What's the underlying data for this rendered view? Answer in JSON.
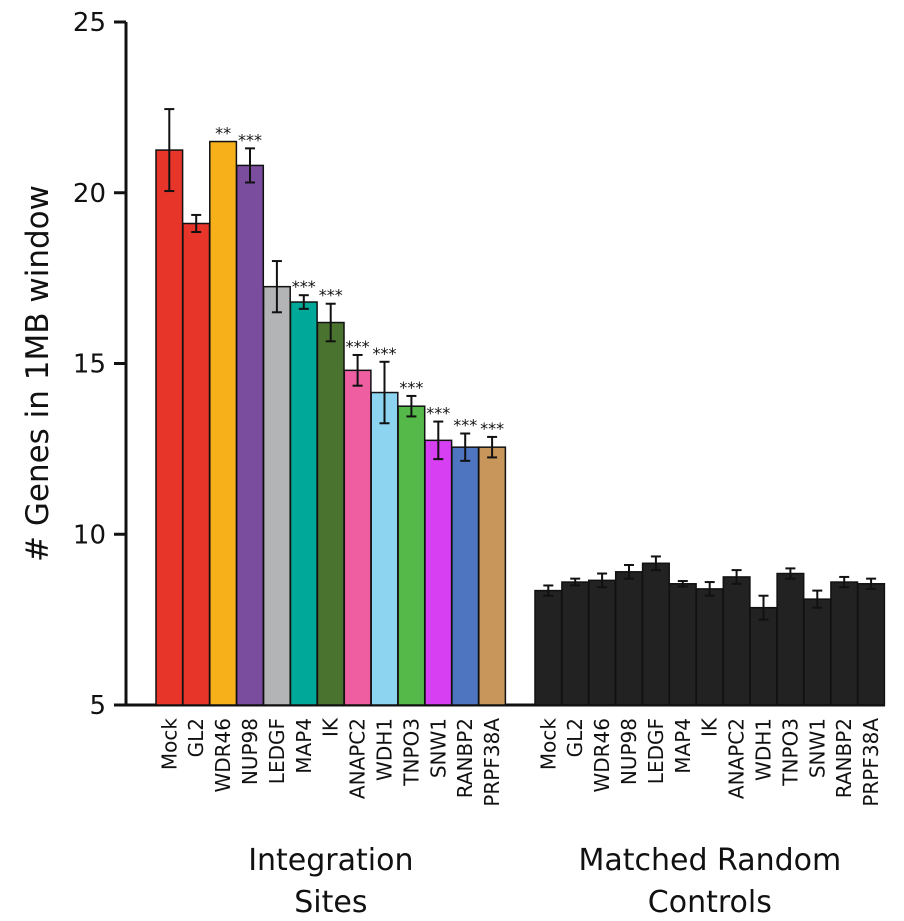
{
  "chart_data": {
    "type": "bar",
    "title": "",
    "xlabel": "",
    "ylabel": "# Genes in 1MB window",
    "ylim": [
      5,
      25
    ],
    "yticks": [
      "5",
      "10",
      "15",
      "20",
      "25"
    ],
    "grid": false,
    "legend": "none",
    "groups": [
      {
        "label_line1": "Integration",
        "label_line2": "Sites",
        "categories": [
          "Mock",
          "GL2",
          "WDR46",
          "NUP98",
          "LEDGF",
          "MAP4",
          "IK",
          "ANAPC2",
          "WDH1",
          "TNPO3",
          "SNW1",
          "RANBP2",
          "PRPF38A"
        ],
        "values": [
          21.25,
          19.1,
          21.5,
          20.8,
          17.25,
          16.8,
          16.2,
          14.8,
          14.15,
          13.75,
          12.75,
          12.55,
          12.55
        ],
        "errors": [
          1.2,
          0.25,
          0.0,
          0.5,
          0.75,
          0.2,
          0.55,
          0.45,
          0.9,
          0.3,
          0.55,
          0.4,
          0.3
        ],
        "significance": [
          "",
          "",
          "**",
          "***",
          "",
          "***",
          "***",
          "***",
          "***",
          "***",
          "***",
          "***",
          "***"
        ],
        "colors": [
          "#e8352a",
          "#e8352a",
          "#f7b019",
          "#7a4d9e",
          "#b2b4b6",
          "#00a89a",
          "#4a7330",
          "#ee5ea1",
          "#8dd4f1",
          "#54b948",
          "#d63ff2",
          "#4e76c0",
          "#c8965a"
        ]
      },
      {
        "label_line1": "Matched Random",
        "label_line2": "Controls",
        "categories": [
          "Mock",
          "GL2",
          "WDR46",
          "NUP98",
          "LEDGF",
          "MAP4",
          "IK",
          "ANAPC2",
          "WDH1",
          "TNPO3",
          "SNW1",
          "RANBP2",
          "PRPF38A"
        ],
        "values": [
          8.35,
          8.6,
          8.65,
          8.9,
          9.15,
          8.55,
          8.4,
          8.75,
          7.85,
          8.85,
          8.1,
          8.6,
          8.55
        ],
        "errors": [
          0.15,
          0.1,
          0.2,
          0.2,
          0.2,
          0.08,
          0.2,
          0.2,
          0.35,
          0.15,
          0.25,
          0.15,
          0.15
        ],
        "significance": [
          "",
          "",
          "",
          "",
          "",
          "",
          "",
          "",
          "",
          "",
          "",
          "",
          ""
        ],
        "colors": [
          "#222222",
          "#222222",
          "#222222",
          "#222222",
          "#222222",
          "#222222",
          "#222222",
          "#222222",
          "#222222",
          "#222222",
          "#222222",
          "#222222",
          "#222222"
        ]
      }
    ]
  }
}
